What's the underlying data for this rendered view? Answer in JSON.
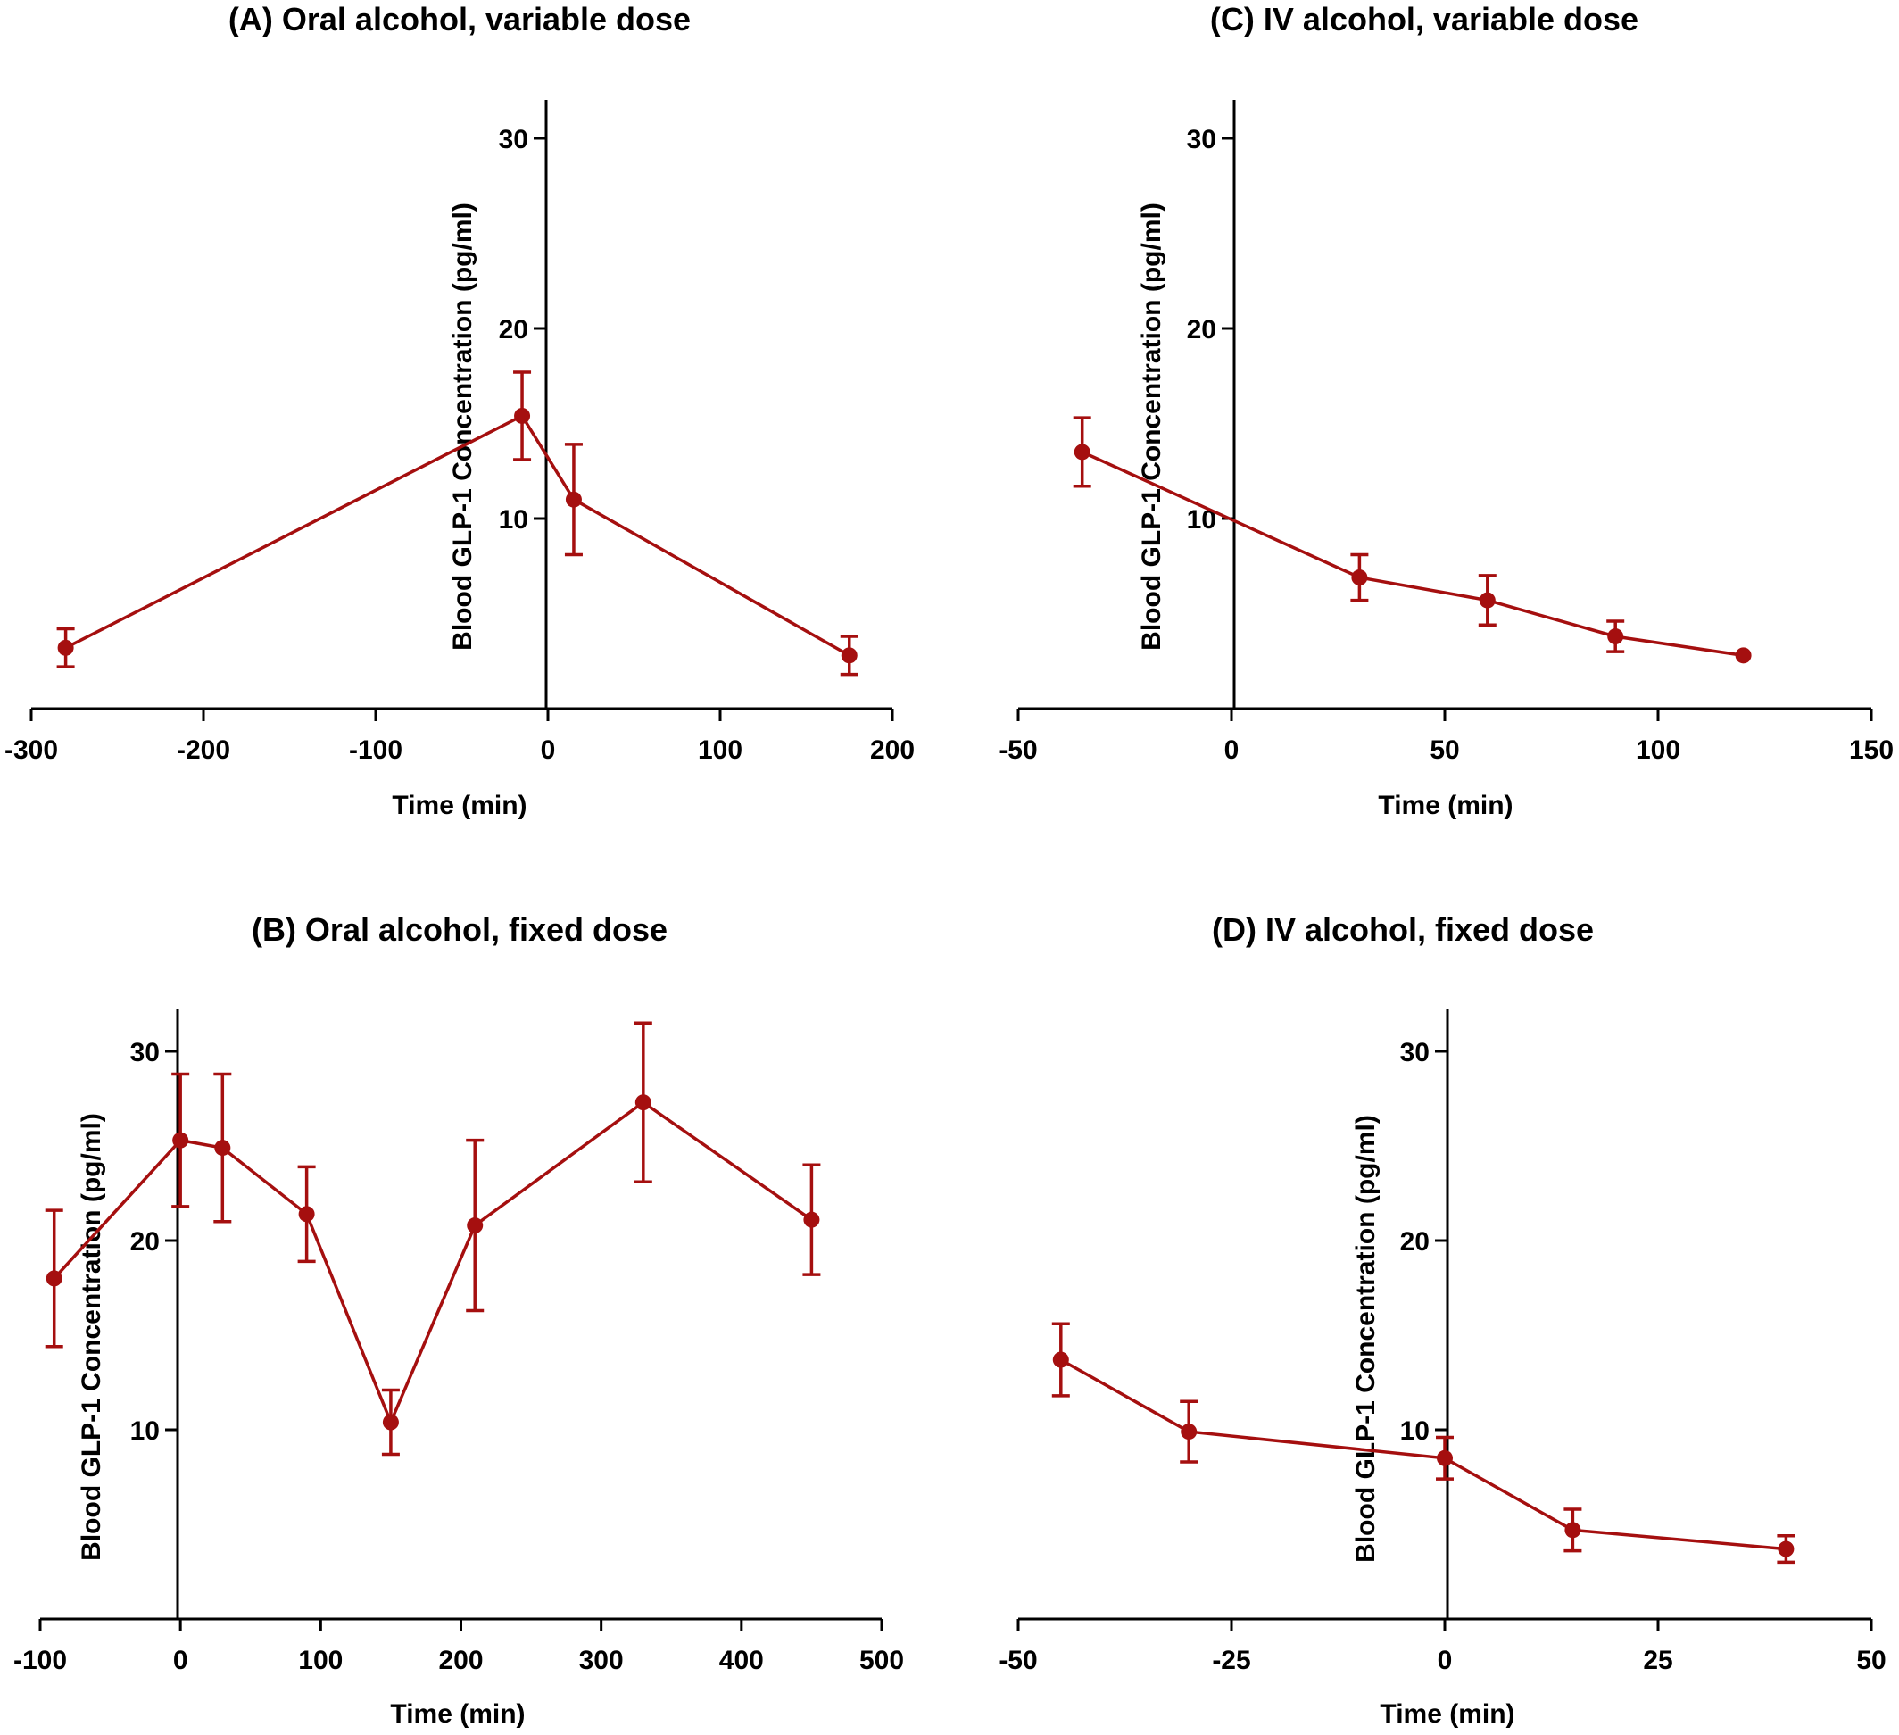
{
  "colors": {
    "series": "#a50f0f",
    "axis": "#000000"
  },
  "chart_data": [
    {
      "type": "line",
      "title": "(A) Oral alcohol, variable dose",
      "xlabel": "Time (min)",
      "ylabel": "Blood GLP-1 Concentration (pg/ml)",
      "xlim": [
        -300,
        200
      ],
      "ylim": [
        0,
        32
      ],
      "xticks": [
        -300,
        -200,
        -100,
        0,
        100,
        200
      ],
      "yticks": [
        10,
        20,
        30
      ],
      "x": [
        -280,
        -15,
        15,
        175
      ],
      "y": [
        3.2,
        15.4,
        11.0,
        2.8
      ],
      "err": [
        1.0,
        2.3,
        2.9,
        1.0
      ],
      "grid": false
    },
    {
      "type": "line",
      "title": "(B) Oral alcohol, fixed dose",
      "xlabel": "Time (min)",
      "ylabel": "Blood GLP-1 Concentration (pg/ml)",
      "xlim": [
        -100,
        500
      ],
      "ylim": [
        0,
        32
      ],
      "xticks": [
        -100,
        0,
        100,
        200,
        300,
        400,
        500
      ],
      "yticks": [
        10,
        20,
        30
      ],
      "x": [
        -90,
        0,
        30,
        90,
        150,
        210,
        330,
        450
      ],
      "y": [
        18.0,
        25.3,
        24.9,
        21.4,
        10.4,
        20.8,
        27.3,
        21.1
      ],
      "err": [
        3.6,
        3.5,
        3.9,
        2.5,
        1.7,
        4.5,
        4.2,
        2.9
      ],
      "grid": false
    },
    {
      "type": "line",
      "title": "(C) IV alcohol, variable dose",
      "xlabel": "Time (min)",
      "ylabel": "Blood GLP-1 Concentration (pg/ml)",
      "xlim": [
        -50,
        150
      ],
      "ylim": [
        0,
        32
      ],
      "xticks": [
        -50,
        0,
        50,
        100,
        150
      ],
      "yticks": [
        10,
        20,
        30
      ],
      "x": [
        -35,
        30,
        60,
        90,
        120
      ],
      "y": [
        13.5,
        6.9,
        5.7,
        3.8,
        2.8
      ],
      "err": [
        1.8,
        1.2,
        1.3,
        0.8,
        0
      ],
      "grid": false
    },
    {
      "type": "line",
      "title": "(D) IV alcohol, fixed dose",
      "xlabel": "Time (min)",
      "ylabel": "Blood GLP-1 Concentration (pg/ml)",
      "xlim": [
        -50,
        50
      ],
      "ylim": [
        0,
        32
      ],
      "xticks": [
        -50,
        -25,
        0,
        25,
        50
      ],
      "yticks": [
        10,
        20,
        30
      ],
      "x": [
        -45,
        -30,
        0,
        15,
        40
      ],
      "y": [
        13.7,
        9.9,
        8.5,
        4.7,
        3.7
      ],
      "err": [
        1.9,
        1.6,
        1.1,
        1.1,
        0.7
      ],
      "grid": false
    }
  ]
}
